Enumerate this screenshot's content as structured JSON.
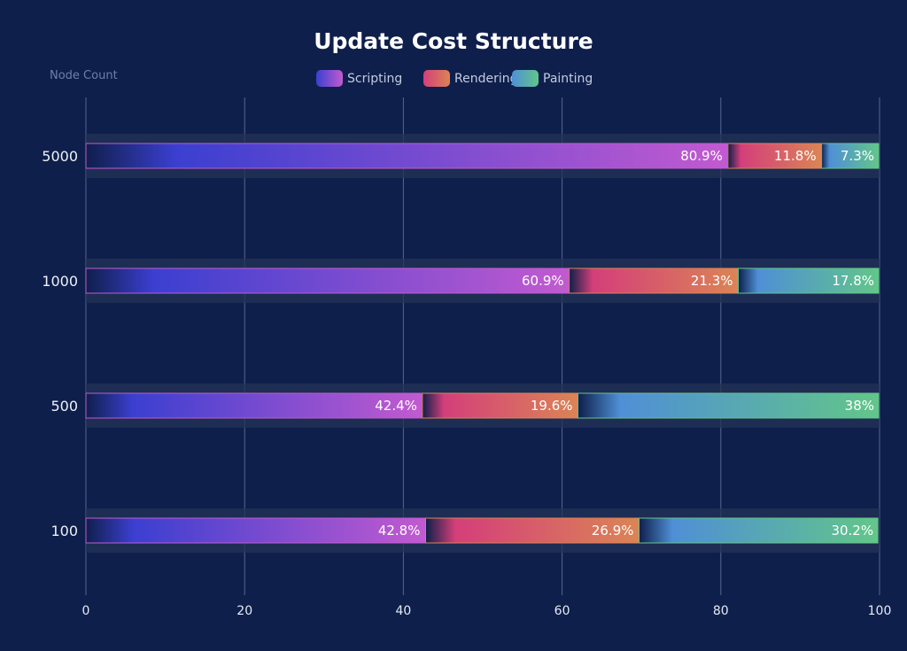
{
  "chart_data": {
    "type": "bar",
    "orientation": "horizontal",
    "stacked": true,
    "title": "Update Cost Structure",
    "xlabel": "",
    "ylabel": "Node Count",
    "xlim": [
      0,
      100
    ],
    "x_ticks": [
      "0",
      "20",
      "40",
      "60",
      "80",
      "100"
    ],
    "categories": [
      "5000",
      "1000",
      "500",
      "100"
    ],
    "series": [
      {
        "name": "Scripting",
        "values": [
          80.9,
          60.9,
          42.4,
          42.8
        ],
        "labels": [
          "80.9%",
          "60.9%",
          "42.4%",
          "42.8%"
        ],
        "colors": [
          "#3b3fd0",
          "#c25ad0"
        ]
      },
      {
        "name": "Rendering",
        "values": [
          11.8,
          21.3,
          19.6,
          26.9
        ],
        "labels": [
          "11.8%",
          "21.3%",
          "19.6%",
          "26.9%"
        ],
        "colors": [
          "#d43f7a",
          "#db8455"
        ]
      },
      {
        "name": "Painting",
        "values": [
          7.3,
          17.8,
          38,
          30.2
        ],
        "labels": [
          "7.3%",
          "17.8%",
          "38%",
          "30.2%"
        ],
        "colors": [
          "#4f8fd6",
          "#62c689"
        ]
      }
    ],
    "grid": "vertical",
    "legend_position": "top-center",
    "background": "#0f1f4b"
  }
}
